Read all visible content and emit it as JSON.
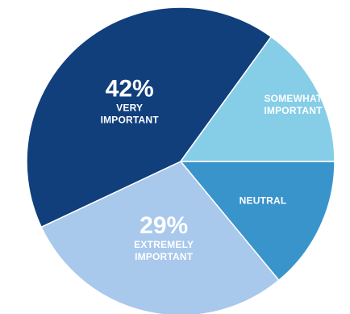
{
  "chart_data": {
    "type": "pie",
    "slices": [
      {
        "name": "NEUTRAL",
        "label_lines": [
          "NEUTRAL"
        ],
        "value": 14,
        "value_label": "",
        "color": "#3a94cc"
      },
      {
        "name": "EXTREMELY IMPORTANT",
        "label_lines": [
          "EXTREMELY",
          "IMPORTANT"
        ],
        "value": 29,
        "value_label": "29%",
        "color": "#a8c8ec"
      },
      {
        "name": "VERY IMPORTANT",
        "label_lines": [
          "VERY",
          "IMPORTANT"
        ],
        "value": 42,
        "value_label": "42%",
        "color": "#103f7c"
      },
      {
        "name": "SOMEWHAT IMPORTANT",
        "label_lines": [
          "SOMEWHAT",
          "IMPORTANT"
        ],
        "value": 15,
        "value_label": "",
        "color": "#86cde8"
      }
    ],
    "start_angle_deg": 0,
    "direction": "clockwise",
    "legend": "none"
  }
}
